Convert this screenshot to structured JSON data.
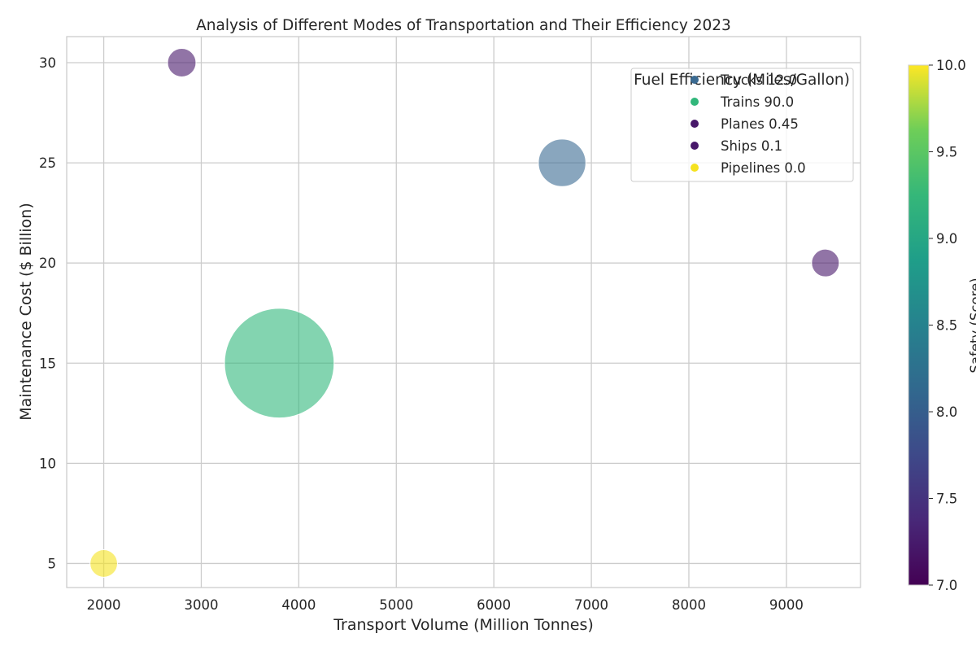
{
  "chart_data": {
    "type": "scatter",
    "title": "Analysis of Different Modes of Transportation and Their Efficiency 2023",
    "xlabel": "Transport Volume (Million Tonnes)",
    "ylabel": "Maintenance Cost ($ Billion)",
    "xlim": [
      1620,
      9760
    ],
    "ylim": [
      3.8,
      31.3
    ],
    "xticks": [
      2000,
      3000,
      4000,
      5000,
      6000,
      7000,
      8000,
      9000
    ],
    "yticks": [
      5,
      10,
      15,
      20,
      25,
      30
    ],
    "grid": true,
    "bubble_size": "Fuel Efficiency (Miles/Gallon)",
    "color_scale": "viridis",
    "legend": {
      "title": "Fuel Efficiency (Miles/Gallon)",
      "position": "top-right",
      "entries": [
        {
          "label": "Trucks 12.0",
          "color": "#3b6b92"
        },
        {
          "label": "Trains 90.0",
          "color": "#31b77b"
        },
        {
          "label": "Planes 0.45",
          "color": "#48186a"
        },
        {
          "label": "Ships 0.1",
          "color": "#48186a"
        },
        {
          "label": "Pipelines 0.0",
          "color": "#f5e21f"
        }
      ]
    },
    "colorbar": {
      "label": "Safety (Score)",
      "range": [
        7.0,
        10.0
      ],
      "ticks": [
        "7.0",
        "7.5",
        "8.0",
        "8.5",
        "9.0",
        "9.5",
        "10.0"
      ]
    },
    "points": [
      {
        "name": "Trucks",
        "x": 6700,
        "y": 25,
        "fuel_efficiency": 12.0,
        "safety": 8.0,
        "color": "#3b6b92"
      },
      {
        "name": "Trains",
        "x": 3800,
        "y": 15,
        "fuel_efficiency": 90.0,
        "safety": 9.0,
        "color": "#31b77b"
      },
      {
        "name": "Planes",
        "x": 2800,
        "y": 30,
        "fuel_efficiency": 0.45,
        "safety": 7.2,
        "color": "#48186a"
      },
      {
        "name": "Ships",
        "x": 9400,
        "y": 20,
        "fuel_efficiency": 0.1,
        "safety": 7.2,
        "color": "#48186a"
      },
      {
        "name": "Pipelines",
        "x": 2000,
        "y": 5,
        "fuel_efficiency": 0.0,
        "safety": 10.0,
        "color": "#f5e21f"
      }
    ]
  }
}
